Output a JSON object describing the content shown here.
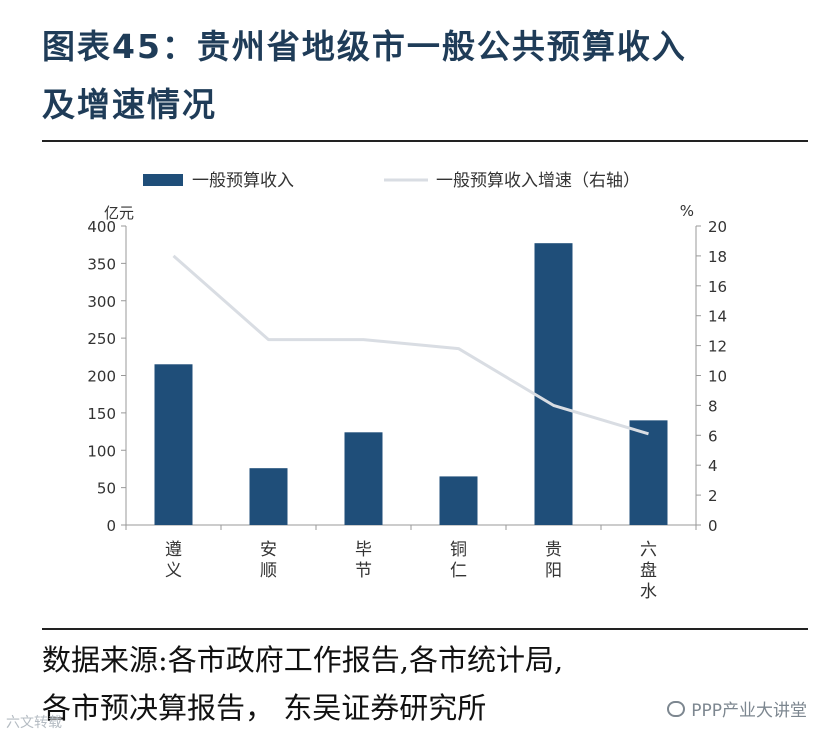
{
  "header": {
    "title_line1": "图表45：贵州省地级市一般公共预算收入",
    "title_line2": "及增速情况"
  },
  "chart_data": {
    "type": "bar",
    "categories": [
      [
        "遵",
        "义"
      ],
      [
        "安",
        "顺"
      ],
      [
        "毕",
        "节"
      ],
      [
        "铜",
        "仁"
      ],
      [
        "贵",
        "阳"
      ],
      [
        "六",
        "盘",
        "水"
      ]
    ],
    "series": [
      {
        "name": "一般预算收入",
        "type": "bar",
        "axis": "left",
        "values": [
          215,
          76,
          124,
          65,
          377,
          140
        ],
        "color": "#1f4e79"
      },
      {
        "name": "一般预算收入增速（右轴）",
        "type": "line",
        "axis": "right",
        "values": [
          18.0,
          12.4,
          12.4,
          11.8,
          8.0,
          6.1
        ],
        "color": "#d9dde3"
      }
    ],
    "y_left": {
      "unit_label": "亿元",
      "min": 0,
      "max": 400,
      "step": 50,
      "ticks": [
        "0",
        "50",
        "100",
        "150",
        "200",
        "250",
        "300",
        "350",
        "400"
      ]
    },
    "y_right": {
      "unit_label": "%",
      "min": 0,
      "max": 20,
      "step": 2,
      "ticks": [
        "0",
        "2",
        "4",
        "6",
        "8",
        "10",
        "12",
        "14",
        "16",
        "18",
        "20"
      ]
    },
    "legend_position": "top",
    "grid": false
  },
  "source": {
    "line1": "数据来源:各市政府工作报告,各市统计局,",
    "line2": "各市预决算报告， 东吴证券研究所"
  },
  "watermarks": {
    "right": "PPP产业大讲堂",
    "left": "六文转载"
  }
}
